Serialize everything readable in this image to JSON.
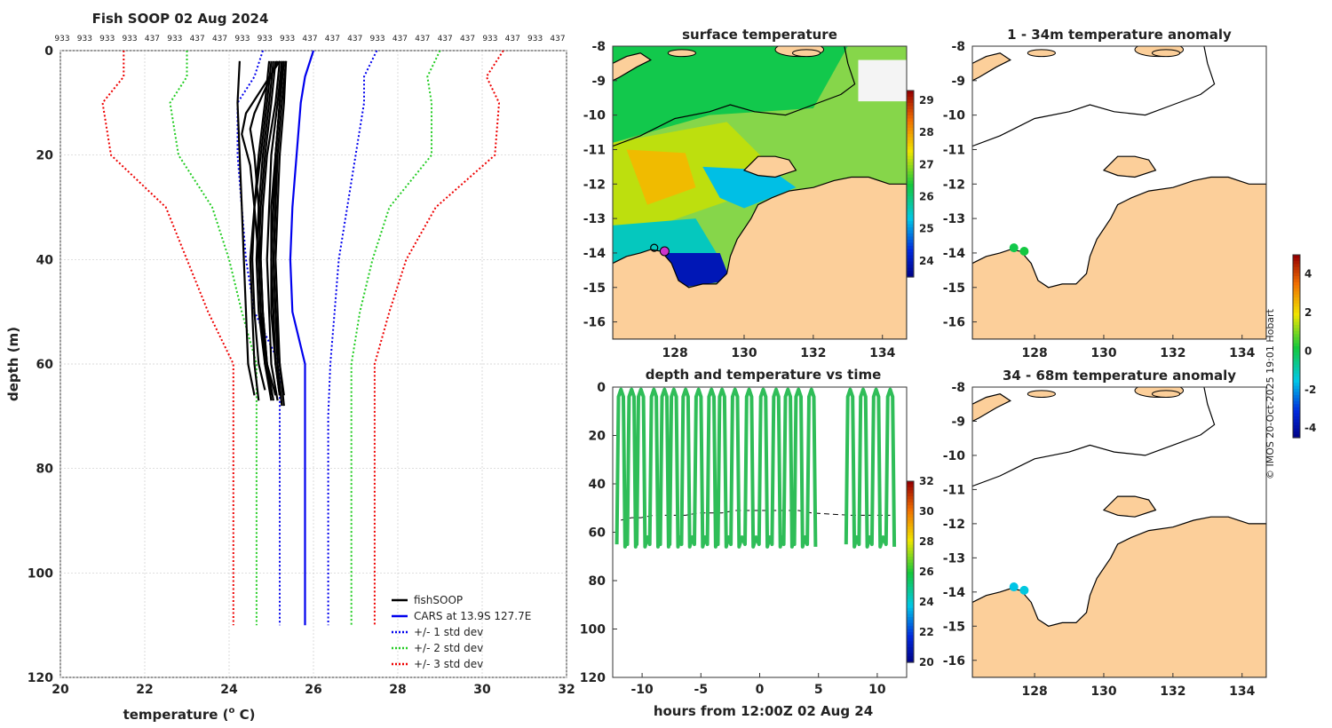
{
  "chart_data": [
    {
      "type": "line",
      "title": "Fish SOOP 02 Aug 2024",
      "xlabel": "temperature (",
      "xlabel_sup": "o",
      "xlabel_end": " C)",
      "ylabel": "depth (m)",
      "xlim": [
        20,
        32
      ],
      "ylim": [
        120,
        0
      ],
      "xticks": [
        "20",
        "22",
        "24",
        "26",
        "28",
        "30",
        "32"
      ],
      "yticks": [
        "0",
        "20",
        "40",
        "60",
        "80",
        "100",
        "120"
      ],
      "top_labels": [
        "933",
        "933",
        "933",
        "933",
        "437",
        "933",
        "437",
        "437",
        "933",
        "933",
        "933",
        "437",
        "437",
        "437",
        "933",
        "437",
        "437",
        "437",
        "437",
        "933",
        "437",
        "933",
        "437"
      ],
      "legend": [
        "fishSOOP",
        "CARS at 13.9S 127.7E",
        "+/- 1 std dev",
        "+/- 2 std dev",
        "+/- 3 std dev"
      ],
      "series": [
        {
          "name": "CARS",
          "color": "#0000ee",
          "depth": [
            0,
            5,
            10,
            20,
            30,
            40,
            50,
            60,
            70,
            80,
            90,
            100,
            110
          ],
          "temp": [
            26.0,
            25.8,
            25.7,
            25.6,
            25.5,
            25.45,
            25.5,
            25.8,
            25.8,
            25.8,
            25.8,
            25.8,
            25.8
          ]
        },
        {
          "name": "+1 std",
          "color": "#0000ee",
          "depth": [
            0,
            5,
            10,
            20,
            30,
            40,
            50,
            60,
            70,
            80,
            90,
            100,
            110
          ],
          "temp": [
            27.5,
            27.2,
            27.2,
            27.0,
            26.8,
            26.6,
            26.5,
            26.4,
            26.35,
            26.35,
            26.35,
            26.35,
            26.35
          ]
        },
        {
          "name": "-1 std",
          "color": "#0000ee",
          "depth": [
            0,
            5,
            10,
            20,
            30,
            40,
            50,
            60,
            70,
            80,
            90,
            100,
            110
          ],
          "temp": [
            24.8,
            24.6,
            24.2,
            24.2,
            24.3,
            24.4,
            24.6,
            25.2,
            25.2,
            25.2,
            25.2,
            25.2,
            25.2
          ]
        },
        {
          "name": "+2 std",
          "color": "#22cc22",
          "depth": [
            0,
            5,
            10,
            20,
            30,
            40,
            50,
            60,
            70,
            80,
            90,
            100,
            110
          ],
          "temp": [
            29.0,
            28.7,
            28.8,
            28.8,
            27.8,
            27.4,
            27.1,
            26.9,
            26.9,
            26.9,
            26.9,
            26.9,
            26.9
          ]
        },
        {
          "name": "-2 std",
          "color": "#22cc22",
          "depth": [
            0,
            5,
            10,
            20,
            30,
            40,
            50,
            60,
            70,
            80,
            90,
            100,
            110
          ],
          "temp": [
            23.0,
            23.0,
            22.6,
            22.8,
            23.6,
            24.0,
            24.3,
            24.65,
            24.65,
            24.65,
            24.65,
            24.65,
            24.65
          ]
        },
        {
          "name": "+3 std",
          "color": "#ee0000",
          "depth": [
            0,
            5,
            10,
            20,
            30,
            40,
            50,
            60,
            70,
            80,
            90,
            100,
            110
          ],
          "temp": [
            30.5,
            30.1,
            30.4,
            30.3,
            28.9,
            28.2,
            27.8,
            27.45,
            27.45,
            27.45,
            27.45,
            27.45,
            27.45
          ]
        },
        {
          "name": "-3 std",
          "color": "#ee0000",
          "depth": [
            0,
            5,
            10,
            20,
            30,
            40,
            50,
            60,
            70,
            80,
            90,
            100,
            110
          ],
          "temp": [
            21.5,
            21.5,
            21.0,
            21.2,
            22.5,
            23.0,
            23.5,
            24.1,
            24.1,
            24.1,
            24.1,
            24.1,
            24.1
          ]
        }
      ],
      "fishsoop_profiles": [
        {
          "depth": [
            2,
            10,
            20,
            30,
            40,
            50,
            60,
            66
          ],
          "temp": [
            24.25,
            24.2,
            24.25,
            24.3,
            24.35,
            24.4,
            24.45,
            24.6
          ]
        },
        {
          "depth": [
            2,
            10,
            20,
            30,
            40,
            50,
            60,
            66
          ],
          "temp": [
            25.2,
            25.1,
            24.9,
            24.8,
            24.75,
            24.8,
            24.9,
            25.1
          ]
        },
        {
          "depth": [
            2,
            10,
            20,
            30,
            40,
            50,
            60,
            67
          ],
          "temp": [
            25.25,
            25.15,
            25.0,
            24.95,
            24.9,
            24.95,
            25.0,
            25.15
          ]
        },
        {
          "depth": [
            2,
            10,
            20,
            30,
            40,
            50,
            60,
            66
          ],
          "temp": [
            25.3,
            25.2,
            25.1,
            25.05,
            25.0,
            25.05,
            25.1,
            25.2
          ]
        },
        {
          "depth": [
            2,
            10,
            20,
            30,
            40,
            50,
            60,
            67
          ],
          "temp": [
            25.1,
            25.0,
            24.85,
            24.75,
            24.7,
            24.75,
            24.9,
            25.05
          ]
        },
        {
          "depth": [
            2,
            10,
            20,
            30,
            40,
            50,
            60,
            68
          ],
          "temp": [
            25.35,
            25.25,
            25.15,
            25.1,
            25.05,
            25.1,
            25.15,
            25.25
          ]
        },
        {
          "depth": [
            2,
            10,
            20,
            30,
            40,
            50,
            60,
            66
          ],
          "temp": [
            25.05,
            24.95,
            24.8,
            24.7,
            24.65,
            24.7,
            24.85,
            25.0
          ]
        },
        {
          "depth": [
            2,
            12,
            15,
            20,
            30,
            40,
            50,
            60,
            66
          ],
          "temp": [
            25.15,
            24.6,
            24.5,
            24.6,
            24.7,
            24.75,
            24.8,
            24.9,
            25.0
          ]
        },
        {
          "depth": [
            2,
            12,
            16,
            22,
            30,
            40,
            50,
            60,
            67
          ],
          "temp": [
            25.2,
            24.4,
            24.3,
            24.5,
            24.6,
            24.7,
            24.75,
            24.85,
            25.0
          ]
        },
        {
          "depth": [
            2,
            10,
            20,
            30,
            40,
            50,
            60,
            65
          ],
          "temp": [
            25.0,
            24.9,
            24.75,
            24.6,
            24.55,
            24.6,
            24.7,
            24.85
          ]
        },
        {
          "depth": [
            2,
            10,
            20,
            30,
            40,
            50,
            60,
            66
          ],
          "temp": [
            25.3,
            25.2,
            25.1,
            25.0,
            25.0,
            25.0,
            25.1,
            25.2
          ]
        },
        {
          "depth": [
            2,
            10,
            20,
            30,
            40,
            50,
            60,
            68
          ],
          "temp": [
            25.25,
            25.2,
            25.1,
            25.1,
            25.05,
            25.1,
            25.2,
            25.3
          ]
        },
        {
          "depth": [
            2,
            10,
            20,
            30,
            40,
            50,
            60,
            67
          ],
          "temp": [
            24.95,
            24.85,
            24.7,
            24.6,
            24.5,
            24.55,
            24.6,
            24.7
          ]
        },
        {
          "depth": [
            2,
            10,
            20,
            30,
            40,
            50,
            60,
            66
          ],
          "temp": [
            25.35,
            25.3,
            25.2,
            25.15,
            25.1,
            25.15,
            25.2,
            25.3
          ]
        }
      ]
    },
    {
      "type": "heatmap",
      "title": "surface temperature",
      "xlim": [
        126.2,
        134.7
      ],
      "ylim": [
        -16.5,
        -8
      ],
      "xticks": [
        "128",
        "130",
        "132",
        "134"
      ],
      "yticks": [
        "-8",
        "-9",
        "-10",
        "-11",
        "-12",
        "-13",
        "-14",
        "-15",
        "-16"
      ],
      "colorbar_ticks": [
        "29",
        "28",
        "27",
        "26",
        "25",
        "24"
      ],
      "colorbar_range": [
        23.5,
        29.3
      ]
    },
    {
      "type": "line",
      "title": "depth and temperature vs time",
      "xlabel": "hours from 12:00Z 02 Aug 24",
      "xlim": [
        -12.5,
        12.5
      ],
      "ylim": [
        120,
        0
      ],
      "xticks": [
        "-10",
        "-5",
        "0",
        "5",
        "10"
      ],
      "yticks": [
        "0",
        "20",
        "40",
        "60",
        "80",
        "100",
        "120"
      ],
      "colorbar_ticks": [
        "32",
        "30",
        "28",
        "26",
        "24",
        "22",
        "20"
      ],
      "colorbar_range": [
        20,
        32
      ],
      "dive_hours": [
        -11.8,
        -10.9,
        -10.1,
        -9.0,
        -8.1,
        -7.3,
        -6.3,
        -5.2,
        -4.1,
        -3.2,
        -2.1,
        -0.9,
        0.3,
        1.4,
        2.4,
        3.3,
        4.4,
        7.7,
        8.8,
        9.9,
        11.1
      ],
      "bottom_depth": [
        55,
        54,
        54,
        53,
        53,
        53,
        53,
        52,
        52,
        52,
        51,
        51,
        51,
        51,
        51,
        51,
        52,
        53,
        53,
        53,
        53
      ]
    },
    {
      "type": "scatter",
      "title": "1 - 34m temperature anomaly",
      "xlim": [
        126.2,
        134.7
      ],
      "ylim": [
        -16.5,
        -8
      ],
      "xticks": [
        "128",
        "130",
        "132",
        "134"
      ],
      "yticks": [
        "-8",
        "-9",
        "-10",
        "-11",
        "-12",
        "-13",
        "-14",
        "-15",
        "-16"
      ],
      "points": [
        {
          "lon": 127.4,
          "lat": -13.85,
          "anomaly": 0.1
        },
        {
          "lon": 127.7,
          "lat": -13.95,
          "anomaly": 0.2
        }
      ],
      "colorbar_ticks": [
        "4",
        "2",
        "0",
        "-2",
        "-4"
      ],
      "colorbar_range": [
        -4.5,
        5
      ]
    },
    {
      "type": "scatter",
      "title": "34 - 68m temperature anomaly",
      "xlim": [
        126.2,
        134.7
      ],
      "ylim": [
        -16.5,
        -8
      ],
      "xticks": [
        "128",
        "130",
        "132",
        "134"
      ],
      "yticks": [
        "-8",
        "-9",
        "-10",
        "-11",
        "-12",
        "-13",
        "-14",
        "-15",
        "-16"
      ],
      "points": [
        {
          "lon": 127.4,
          "lat": -13.85,
          "anomaly": -1.5
        },
        {
          "lon": 127.7,
          "lat": -13.95,
          "anomaly": -1.4
        }
      ]
    }
  ],
  "credit": "© IMOS 20-Oct-2025 19:01 Hobart"
}
